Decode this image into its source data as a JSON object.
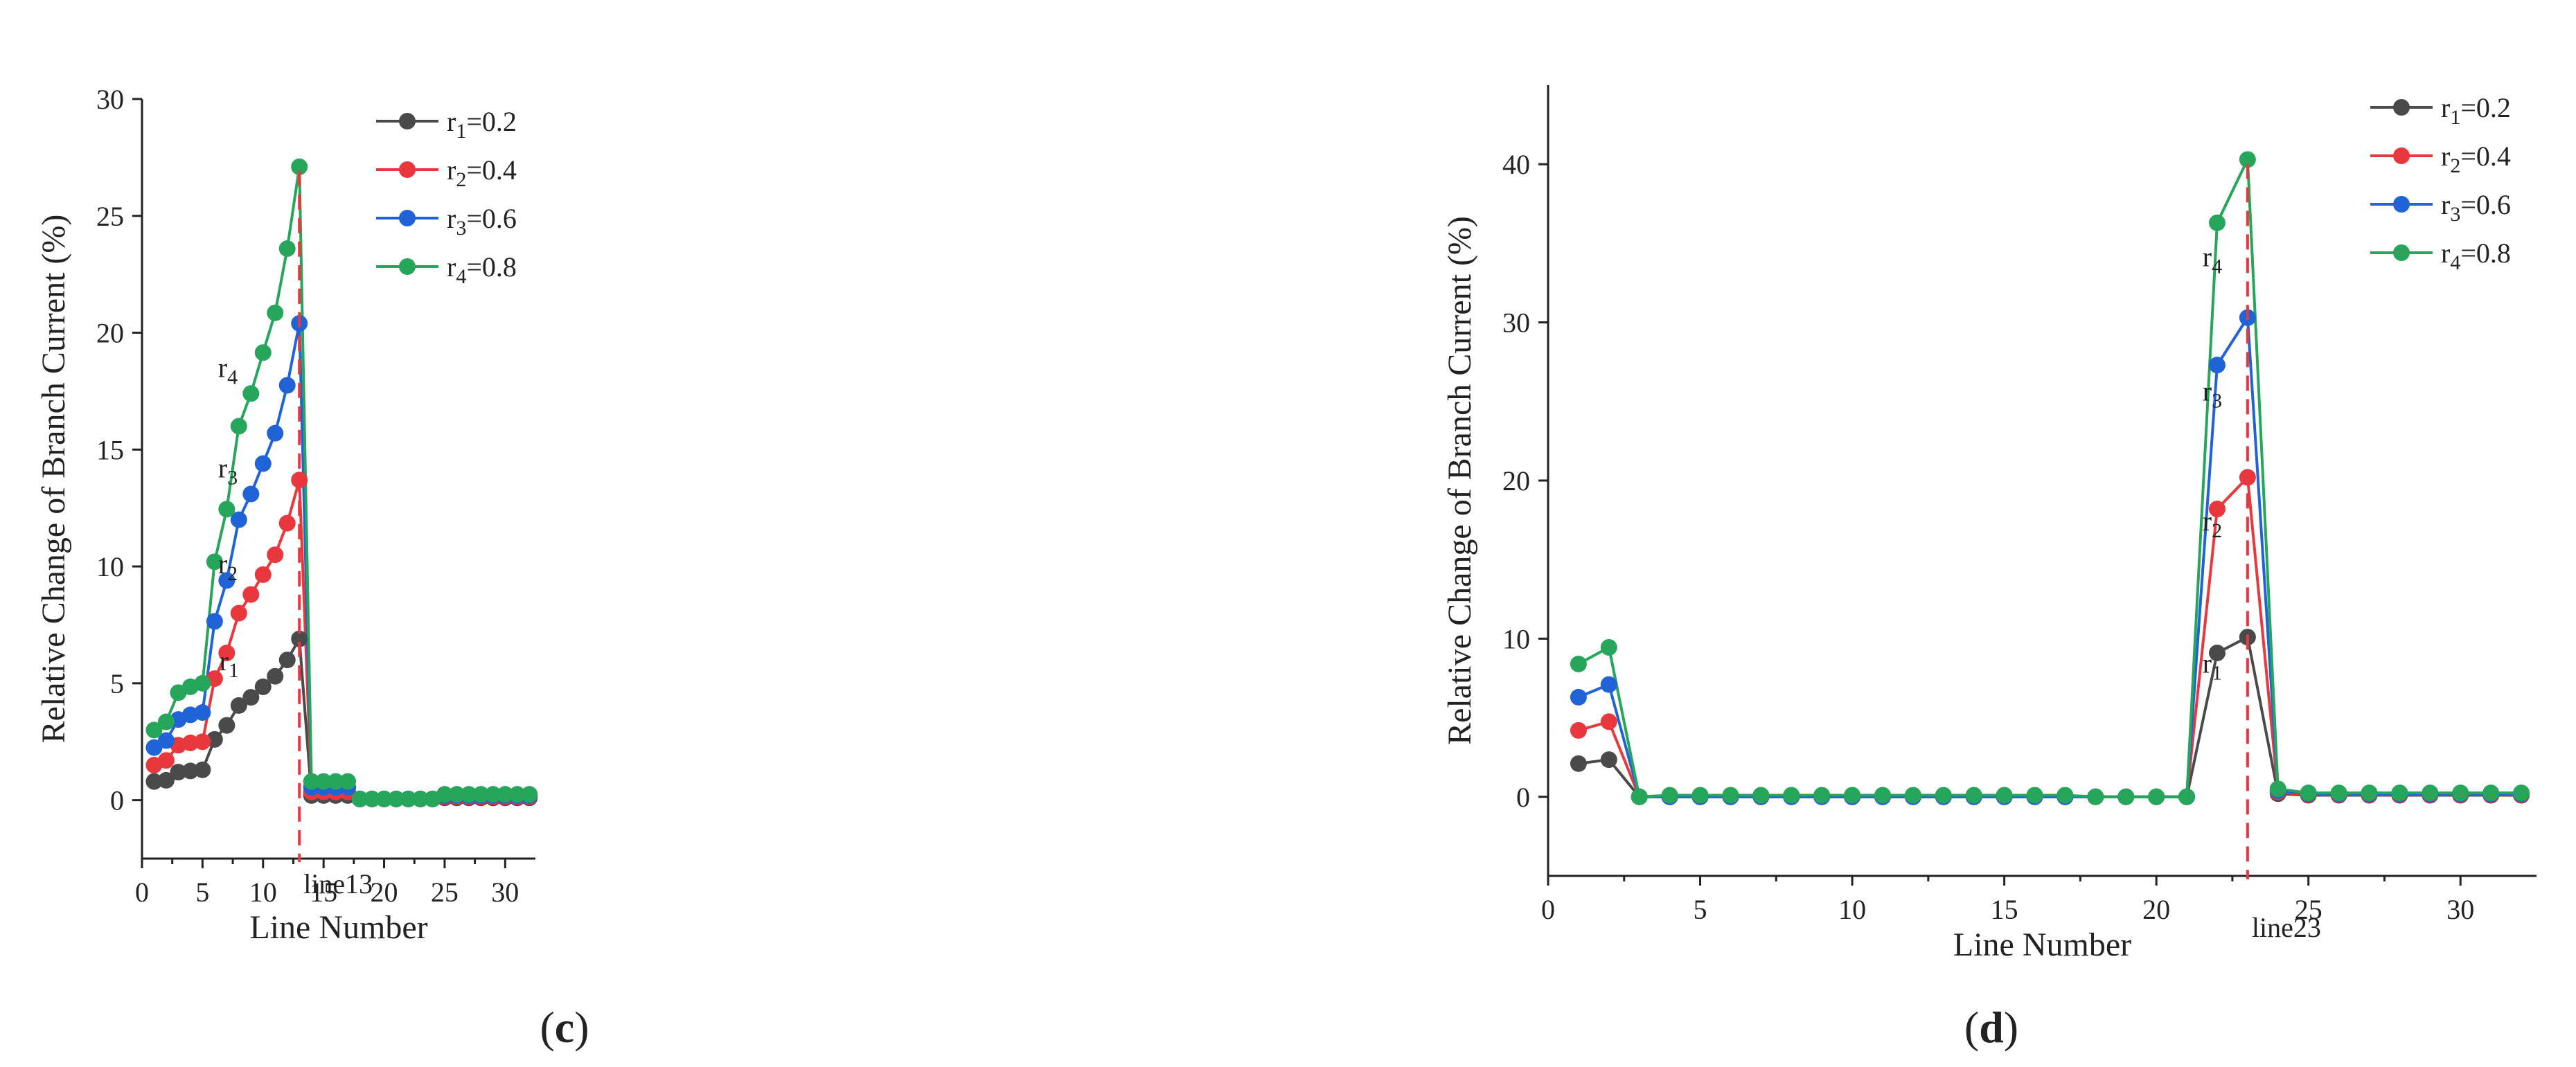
{
  "chart_data": [
    {
      "type": "line",
      "panel_label": "c",
      "xlabel": "Line Number",
      "ylabel": "Relative Change of Branch Current (%)",
      "xlim": [
        0,
        32.5
      ],
      "ylim": [
        -2.5,
        30
      ],
      "xticks": [
        0,
        5,
        10,
        15,
        20,
        25,
        30
      ],
      "yticks": [
        0,
        5,
        10,
        15,
        20,
        25,
        30
      ],
      "grid": false,
      "legend": "top-right",
      "x": [
        1,
        2,
        3,
        4,
        5,
        6,
        7,
        8,
        9,
        10,
        11,
        12,
        13,
        14,
        15,
        16,
        17,
        18,
        19,
        20,
        21,
        22,
        23,
        24,
        25,
        26,
        27,
        28,
        29,
        30,
        31,
        32
      ],
      "series": [
        {
          "name": "r1=0.2",
          "sym": "r",
          "sub": "1",
          "val": "=0.2",
          "color": "#4a4a4a",
          "values": [
            0.8,
            0.85,
            1.2,
            1.25,
            1.3,
            2.6,
            3.2,
            4.05,
            4.4,
            4.85,
            5.3,
            6.0,
            6.9,
            0.2,
            0.2,
            0.2,
            0.2,
            0.05,
            0.05,
            0.05,
            0.05,
            0.05,
            0.05,
            0.05,
            0.1,
            0.1,
            0.1,
            0.1,
            0.1,
            0.1,
            0.1,
            0.1
          ]
        },
        {
          "name": "r2=0.4",
          "sym": "r",
          "sub": "2",
          "val": "=0.4",
          "color": "#e8383d",
          "values": [
            1.5,
            1.7,
            2.35,
            2.45,
            2.5,
            5.2,
            6.3,
            8.0,
            8.8,
            9.65,
            10.5,
            11.85,
            13.7,
            0.35,
            0.35,
            0.35,
            0.35,
            0.05,
            0.05,
            0.05,
            0.05,
            0.05,
            0.05,
            0.05,
            0.15,
            0.15,
            0.15,
            0.15,
            0.15,
            0.15,
            0.15,
            0.15
          ]
        },
        {
          "name": "r3=0.6",
          "sym": "r",
          "sub": "3",
          "val": "=0.6",
          "color": "#1f63d6",
          "values": [
            2.25,
            2.55,
            3.45,
            3.65,
            3.75,
            7.65,
            9.4,
            12.0,
            13.1,
            14.4,
            15.7,
            17.75,
            20.4,
            0.55,
            0.55,
            0.55,
            0.55,
            0.05,
            0.05,
            0.05,
            0.05,
            0.05,
            0.05,
            0.05,
            0.2,
            0.2,
            0.2,
            0.2,
            0.2,
            0.2,
            0.2,
            0.2
          ]
        },
        {
          "name": "r4=0.8",
          "sym": "r",
          "sub": "4",
          "val": "=0.8",
          "color": "#26a65b",
          "values": [
            3.0,
            3.35,
            4.6,
            4.85,
            5.0,
            10.2,
            12.45,
            16.0,
            17.4,
            19.15,
            20.85,
            23.6,
            27.1,
            0.8,
            0.8,
            0.8,
            0.8,
            0.05,
            0.05,
            0.05,
            0.05,
            0.05,
            0.05,
            0.05,
            0.25,
            0.25,
            0.25,
            0.25,
            0.25,
            0.25,
            0.25,
            0.25
          ]
        }
      ],
      "vline": {
        "x": 13,
        "label": "line13"
      },
      "annotations": [
        {
          "sym": "r",
          "sub": "4",
          "x": 8,
          "y": 17.4
        },
        {
          "sym": "r",
          "sub": "3",
          "x": 8,
          "y": 13.1
        },
        {
          "sym": "r",
          "sub": "2",
          "x": 8,
          "y": 9.0
        },
        {
          "sym": "r",
          "sub": "1",
          "x": 8.1,
          "y": 4.85
        }
      ]
    },
    {
      "type": "line",
      "panel_label": "d",
      "xlabel": "Line Number",
      "ylabel": "Relative Change of Branch Current (%)",
      "xlim": [
        0,
        32.5
      ],
      "ylim": [
        -5,
        45
      ],
      "xticks": [
        0,
        5,
        10,
        15,
        20,
        25,
        30
      ],
      "yticks": [
        0,
        10,
        20,
        30,
        40
      ],
      "grid": false,
      "legend": "top-right",
      "x": [
        1,
        2,
        3,
        4,
        5,
        6,
        7,
        8,
        9,
        10,
        11,
        12,
        13,
        14,
        15,
        16,
        17,
        18,
        19,
        20,
        21,
        22,
        23,
        24,
        25,
        26,
        27,
        28,
        29,
        30,
        31,
        32
      ],
      "series": [
        {
          "name": "r1=0.2",
          "sym": "r",
          "sub": "1",
          "val": "=0.2",
          "color": "#4a4a4a",
          "values": [
            2.1,
            2.35,
            0.0,
            0.0,
            0.0,
            0.0,
            0.0,
            0.0,
            0.0,
            0.0,
            0.0,
            0.0,
            0.0,
            0.0,
            0.0,
            0.0,
            0.0,
            0.0,
            0.0,
            0.0,
            0.0,
            9.1,
            10.1,
            0.2,
            0.1,
            0.1,
            0.1,
            0.1,
            0.1,
            0.1,
            0.1,
            0.1
          ]
        },
        {
          "name": "r2=0.4",
          "sym": "r",
          "sub": "2",
          "val": "=0.4",
          "color": "#e8383d",
          "values": [
            4.2,
            4.75,
            0.0,
            0.0,
            0.0,
            0.0,
            0.0,
            0.0,
            0.0,
            0.0,
            0.0,
            0.0,
            0.0,
            0.0,
            0.0,
            0.0,
            0.0,
            0.0,
            0.0,
            0.0,
            0.0,
            18.2,
            20.2,
            0.3,
            0.15,
            0.15,
            0.15,
            0.15,
            0.15,
            0.15,
            0.15,
            0.15
          ]
        },
        {
          "name": "r3=0.6",
          "sym": "r",
          "sub": "3",
          "val": "=0.6",
          "color": "#1f63d6",
          "values": [
            6.3,
            7.1,
            0.0,
            0.0,
            0.0,
            0.0,
            0.0,
            0.0,
            0.0,
            0.0,
            0.0,
            0.0,
            0.0,
            0.0,
            0.0,
            0.0,
            0.0,
            0.0,
            0.0,
            0.0,
            0.0,
            27.3,
            30.3,
            0.4,
            0.2,
            0.2,
            0.2,
            0.2,
            0.2,
            0.2,
            0.2,
            0.2
          ]
        },
        {
          "name": "r4=0.8",
          "sym": "r",
          "sub": "4",
          "val": "=0.8",
          "color": "#26a65b",
          "values": [
            8.4,
            9.45,
            0.0,
            0.1,
            0.1,
            0.1,
            0.1,
            0.1,
            0.1,
            0.1,
            0.1,
            0.1,
            0.1,
            0.1,
            0.1,
            0.1,
            0.1,
            0.0,
            0.0,
            0.0,
            0.0,
            36.3,
            40.3,
            0.5,
            0.25,
            0.25,
            0.25,
            0.25,
            0.25,
            0.25,
            0.25,
            0.25
          ]
        }
      ],
      "vline": {
        "x": 23,
        "label": "line23"
      },
      "annotations": [
        {
          "sym": "r",
          "sub": "4",
          "x": 22.2,
          "y": 32.5
        },
        {
          "sym": "r",
          "sub": "3",
          "x": 22.2,
          "y": 24.0
        },
        {
          "sym": "r",
          "sub": "2",
          "x": 22.2,
          "y": 15.8
        },
        {
          "sym": "r",
          "sub": "1",
          "x": 22.2,
          "y": 6.8
        }
      ]
    }
  ]
}
